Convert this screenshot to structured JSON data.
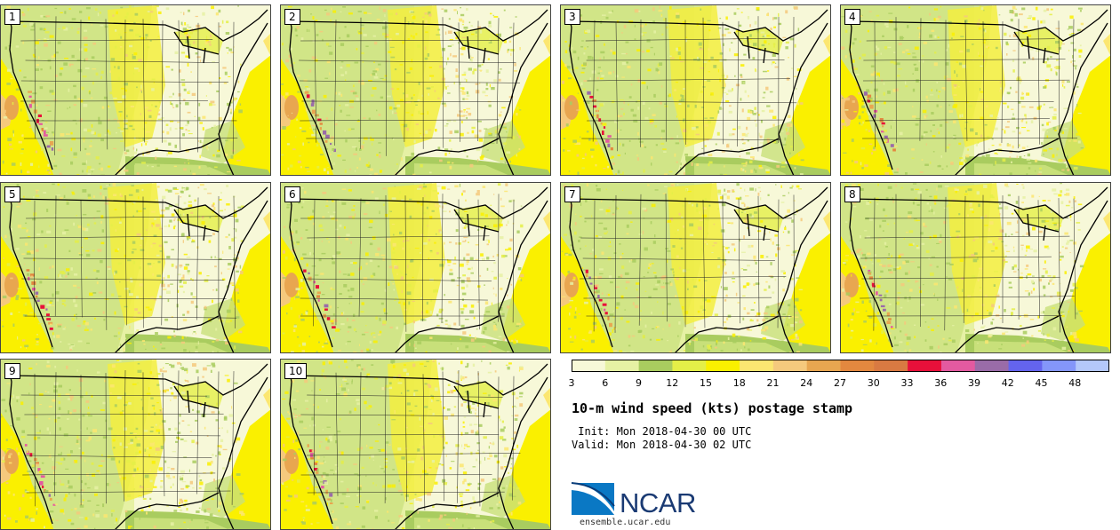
{
  "panels": [
    {
      "label": "1"
    },
    {
      "label": "2"
    },
    {
      "label": "3"
    },
    {
      "label": "4"
    },
    {
      "label": "5"
    },
    {
      "label": "6"
    },
    {
      "label": "7"
    },
    {
      "label": "8"
    },
    {
      "label": "9"
    },
    {
      "label": "10"
    }
  ],
  "colorbar": {
    "levels": [
      "3",
      "6",
      "9",
      "12",
      "15",
      "18",
      "21",
      "24",
      "27",
      "30",
      "33",
      "36",
      "39",
      "42",
      "45",
      "48"
    ],
    "colors": [
      "#f7f8d8",
      "#e6f1a4",
      "#a9cc5f",
      "#e4ef48",
      "#faf000",
      "#fce671",
      "#f5c97d",
      "#e8a650",
      "#e3883f",
      "#d97a42",
      "#e8103a",
      "#e35aa0",
      "#9a6ca8",
      "#6464ee",
      "#8496fa",
      "#b4c8fa"
    ]
  },
  "title": "10-m wind speed (kts) postage stamp",
  "init": " Init: Mon 2018-04-30 00 UTC",
  "valid": "Valid: Mon 2018-04-30 02 UTC",
  "logo": {
    "name": "NCAR",
    "site": "ensemble.ucar.edu"
  }
}
